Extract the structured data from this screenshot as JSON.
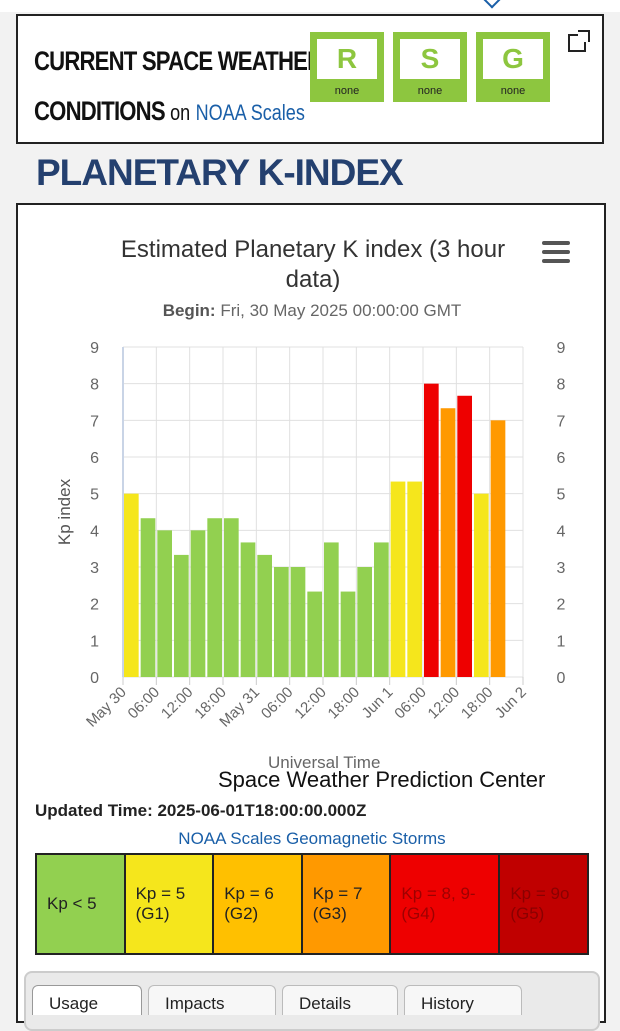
{
  "conditions": {
    "title_line1": "CURRENT SPACE WEATHER",
    "title_line2": "CONDITIONS",
    "on_text": "on",
    "scales_link": "NOAA Scales",
    "scales": [
      {
        "letter": "R",
        "value": "none",
        "color": "#8dc63f"
      },
      {
        "letter": "S",
        "value": "none",
        "color": "#8dc63f"
      },
      {
        "letter": "G",
        "value": "none",
        "color": "#8dc63f"
      }
    ]
  },
  "page_heading": "PLANETARY K-INDEX",
  "chart_header": {
    "title": "Estimated Planetary K index (3 hour data)",
    "begin_label": "Begin:",
    "begin_value": "Fri, 30 May 2025 00:00:00 GMT"
  },
  "chart_data": {
    "type": "bar",
    "title": "Estimated Planetary K index (3 hour data)",
    "ylabel": "Kp index",
    "xlabel": "Universal Time",
    "ylim": [
      0,
      9
    ],
    "yticks": [
      0,
      1,
      2,
      3,
      4,
      5,
      6,
      7,
      8,
      9
    ],
    "x_tick_labels": [
      "May 30",
      "06:00",
      "12:00",
      "18:00",
      "May 31",
      "06:00",
      "12:00",
      "18:00",
      "Jun 1",
      "06:00",
      "12:00",
      "18:00",
      "Jun 2"
    ],
    "grid": true,
    "categories": [
      "May 30 00:00",
      "May 30 03:00",
      "May 30 06:00",
      "May 30 09:00",
      "May 30 12:00",
      "May 30 15:00",
      "May 30 18:00",
      "May 30 21:00",
      "May 31 00:00",
      "May 31 03:00",
      "May 31 06:00",
      "May 31 09:00",
      "May 31 12:00",
      "May 31 15:00",
      "May 31 18:00",
      "May 31 21:00",
      "Jun 1 00:00",
      "Jun 1 03:00",
      "Jun 1 06:00",
      "Jun 1 09:00",
      "Jun 1 12:00",
      "Jun 1 15:00",
      "Jun 1 18:00",
      "Jun 1 21:00"
    ],
    "values": [
      5.0,
      4.33,
      4.0,
      3.33,
      4.0,
      4.33,
      4.33,
      3.67,
      3.33,
      3.0,
      3.0,
      2.33,
      3.67,
      2.33,
      3.0,
      3.67,
      5.33,
      5.33,
      8.0,
      7.33,
      7.67,
      5.0,
      7.0,
      null
    ],
    "colors": [
      "#f5e61c",
      "#92d050",
      "#92d050",
      "#92d050",
      "#92d050",
      "#92d050",
      "#92d050",
      "#92d050",
      "#92d050",
      "#92d050",
      "#92d050",
      "#92d050",
      "#92d050",
      "#92d050",
      "#92d050",
      "#92d050",
      "#f5e61c",
      "#f5e61c",
      "#ee0000",
      "#ff9900",
      "#ee0000",
      "#f5e61c",
      "#ff9900",
      null
    ]
  },
  "credit": "Space Weather Prediction Center",
  "updated": "Updated Time: 2025-06-01T18:00:00.000Z",
  "scales_title": "NOAA Scales Geomagnetic Storms",
  "legend": [
    {
      "label": "Kp < 5",
      "color": "#92d050",
      "text_color": "#222222"
    },
    {
      "label": "Kp = 5 (G1)",
      "color": "#f5e61c",
      "text_color": "#222222"
    },
    {
      "label": "Kp = 6 (G2)",
      "color": "#ffc000",
      "text_color": "#222222"
    },
    {
      "label": "Kp = 7 (G3)",
      "color": "#ff9900",
      "text_color": "#222222"
    },
    {
      "label": "Kp = 8, 9- (G4)",
      "color": "#ee0000",
      "text_color": "#9e0000"
    },
    {
      "label": "Kp = 9o (G5)",
      "color": "#c00000",
      "text_color": "#8a0000"
    }
  ],
  "tabs": [
    "Usage",
    "Impacts",
    "Details",
    "History"
  ]
}
